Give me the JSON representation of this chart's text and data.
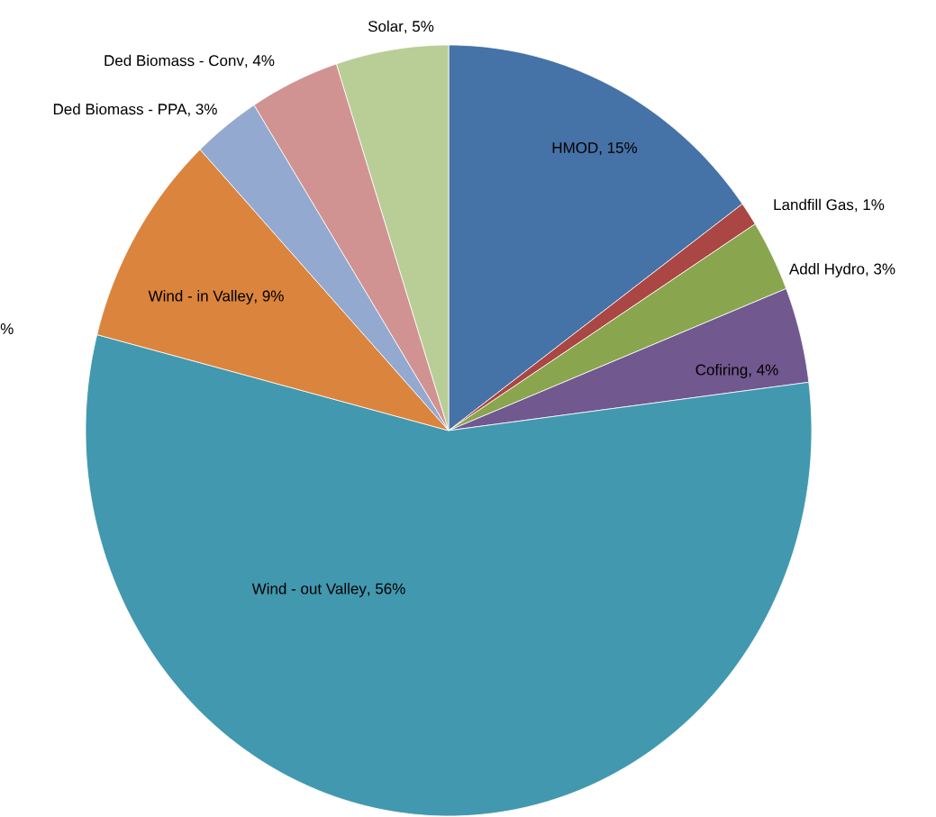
{
  "chart_data": {
    "type": "pie",
    "categories": [
      "HMOD",
      "Landfill Gas",
      "Addl Hydro",
      "Cofiring",
      "Wind - out Valley",
      "Wind - in Valley",
      "Ded Biomass - PPA",
      "Ded Biomass - Conv",
      "Solar"
    ],
    "values": [
      15,
      1,
      3,
      4,
      56,
      9,
      3,
      4,
      5
    ],
    "value_labels": [
      ", 15%",
      ", 1%",
      ", 3%",
      ", 4%",
      ", 56%",
      ", 9%",
      ", 3%",
      ", 4%",
      ", 5%"
    ],
    "colors": [
      "#4572a7",
      "#aa4643",
      "#89a54e",
      "#71588f",
      "#4198af",
      "#db843d",
      "#93a9cf",
      "#d19392",
      "#b9cd96"
    ],
    "annotations": [
      "%"
    ]
  }
}
